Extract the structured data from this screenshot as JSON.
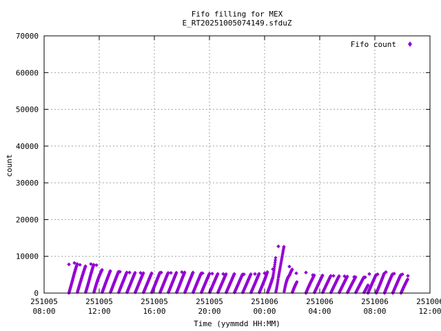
{
  "chart_data": {
    "type": "scatter",
    "title": "Fifo filling for MEX",
    "subtitle": "E_RT20251005074149.sfduZ",
    "xlabel": "Time (yymmdd HH:MM)",
    "ylabel": "count",
    "xlim_hours": [
      8,
      36
    ],
    "ylim": [
      0,
      70000
    ],
    "yticks": [
      0,
      10000,
      20000,
      30000,
      40000,
      50000,
      60000,
      70000
    ],
    "xticks": [
      {
        "hour": 8,
        "date": "251005",
        "time": "08:00"
      },
      {
        "hour": 12,
        "date": "251005",
        "time": "12:00"
      },
      {
        "hour": 16,
        "date": "251005",
        "time": "16:00"
      },
      {
        "hour": 20,
        "date": "251005",
        "time": "20:00"
      },
      {
        "hour": 24,
        "date": "251006",
        "time": "00:00"
      },
      {
        "hour": 28,
        "date": "251006",
        "time": "04:00"
      },
      {
        "hour": 32,
        "date": "251006",
        "time": "08:00"
      },
      {
        "hour": 36,
        "date": "251006",
        "time": "12:00"
      }
    ],
    "grid": true,
    "legend_position": "top-right",
    "series": [
      {
        "name": "Fifo count",
        "color": "#9400d3",
        "marker": "diamond",
        "segments": [
          {
            "t_start": 9.8,
            "t_end": 26.35,
            "points": [
              [
                9.8,
                7800
              ],
              [
                10.2,
                8200
              ],
              [
                10.6,
                7700
              ],
              [
                11.0,
                7300
              ],
              [
                11.4,
                7900
              ],
              [
                11.8,
                7600
              ],
              [
                12.2,
                6300
              ],
              [
                12.8,
                6000
              ],
              [
                13.5,
                5800
              ],
              [
                14.2,
                5600
              ],
              [
                15.0,
                5500
              ],
              [
                15.8,
                5400
              ],
              [
                16.5,
                5600
              ],
              [
                17.2,
                5500
              ],
              [
                18.0,
                5700
              ],
              [
                18.8,
                5600
              ],
              [
                19.5,
                5400
              ],
              [
                20.2,
                5300
              ],
              [
                21.0,
                5200
              ],
              [
                21.8,
                5200
              ],
              [
                22.5,
                5100
              ],
              [
                23.3,
                5200
              ],
              [
                24.0,
                5400
              ],
              [
                24.6,
                6500
              ],
              [
                25.0,
                12700
              ],
              [
                25.4,
                12600
              ],
              [
                25.8,
                7200
              ],
              [
                26.3,
                5400
              ]
            ]
          },
          {
            "t_start": 27.0,
            "t_end": 31.5,
            "points": [
              [
                27.0,
                5600
              ],
              [
                27.5,
                4900
              ],
              [
                28.2,
                4800
              ],
              [
                29.0,
                4700
              ],
              [
                29.8,
                4600
              ],
              [
                30.5,
                4400
              ],
              [
                31.3,
                4300
              ]
            ]
          },
          {
            "t_start": 31.5,
            "t_end": 34.4,
            "points": [
              [
                31.6,
                5200
              ],
              [
                32.2,
                5100
              ],
              [
                32.8,
                5700
              ],
              [
                33.4,
                5300
              ],
              [
                34.0,
                5100
              ],
              [
                34.4,
                4700
              ]
            ]
          }
        ]
      }
    ]
  }
}
